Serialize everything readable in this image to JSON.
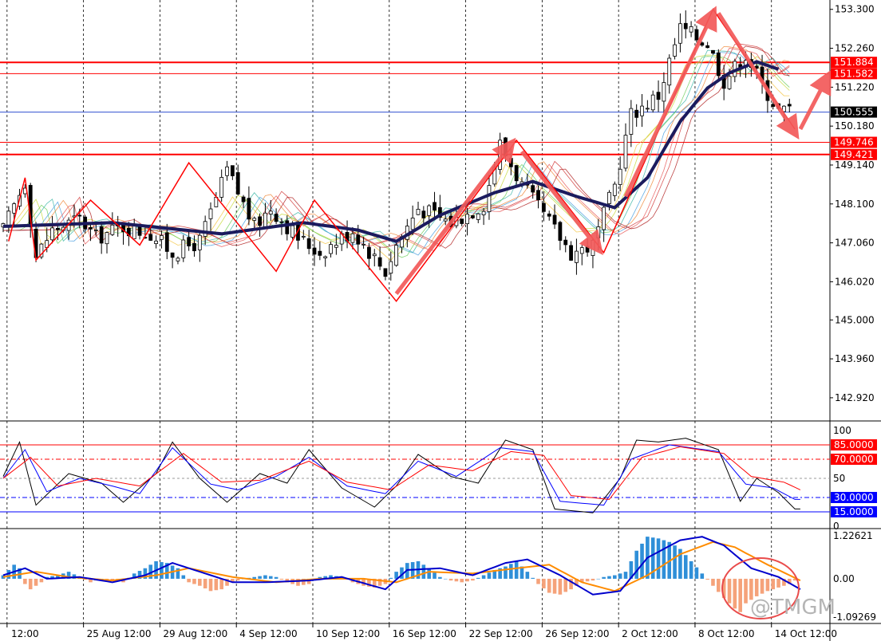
{
  "chart_data": [
    {
      "type": "candlestick",
      "panel": "main",
      "y_ticks": [
        153.3,
        152.26,
        151.22,
        150.18,
        149.14,
        148.1,
        147.06,
        146.02,
        145.0,
        143.96,
        142.92
      ],
      "y_tick_labels": [
        "153.300",
        "152.260",
        "151.220",
        "150.180",
        "149.140",
        "148.100",
        "147.060",
        "146.020",
        "145.000",
        "143.960",
        "142.920"
      ],
      "ylim": [
        142.3,
        153.55
      ],
      "x_labels": [
        "12:00",
        "25 Aug 12:00",
        "29 Aug 12:00",
        "4 Sep 12:00",
        "10 Sep 12:00",
        "16 Sep 12:00",
        "22 Sep 12:00",
        "26 Sep 12:00",
        "2 Oct 12:00",
        "8 Oct 12:00",
        "14 Oct 12:00"
      ],
      "x_label_bars": [
        1,
        15,
        29,
        43,
        57,
        71,
        85,
        99,
        113,
        127,
        141
      ],
      "n_bars": 148,
      "close_path": [
        [
          0,
          147.4
        ],
        [
          4,
          148.7
        ],
        [
          6,
          146.7
        ],
        [
          9,
          147.4
        ],
        [
          14,
          147.7
        ],
        [
          17,
          147.2
        ],
        [
          22,
          147.5
        ],
        [
          27,
          147.3
        ],
        [
          31,
          146.8
        ],
        [
          36,
          147.1
        ],
        [
          41,
          149.0
        ],
        [
          46,
          147.5
        ],
        [
          49,
          148.0
        ],
        [
          54,
          147.2
        ],
        [
          58,
          146.8
        ],
        [
          64,
          147.4
        ],
        [
          70,
          146.3
        ],
        [
          72,
          147.0
        ],
        [
          76,
          148.0
        ],
        [
          82,
          147.6
        ],
        [
          88,
          148.1
        ],
        [
          91,
          149.7
        ],
        [
          95,
          148.6
        ],
        [
          99,
          147.8
        ],
        [
          104,
          146.8
        ],
        [
          108,
          147.0
        ],
        [
          112,
          148.6
        ],
        [
          115,
          150.5
        ],
        [
          120,
          151.0
        ],
        [
          124,
          152.8
        ],
        [
          129,
          152.4
        ],
        [
          132,
          151.4
        ],
        [
          136,
          152.1
        ],
        [
          139,
          151.3
        ],
        [
          142,
          150.6
        ]
      ],
      "ema_thick": [
        [
          0,
          147.5
        ],
        [
          20,
          147.6
        ],
        [
          40,
          147.3
        ],
        [
          55,
          147.6
        ],
        [
          65,
          147.4
        ],
        [
          72,
          147.1
        ],
        [
          80,
          147.8
        ],
        [
          90,
          148.4
        ],
        [
          97,
          148.7
        ],
        [
          105,
          148.3
        ],
        [
          112,
          148.0
        ],
        [
          118,
          148.8
        ],
        [
          124,
          150.3
        ],
        [
          129,
          151.2
        ],
        [
          133,
          151.6
        ],
        [
          138,
          151.9
        ],
        [
          142,
          151.7
        ]
      ],
      "h_lines_red": [
        151.884,
        151.582,
        149.746,
        149.421
      ],
      "h_line_blue": 150.555,
      "price_tags": [
        {
          "value": 151.884,
          "label": "151.884",
          "color": "#ff0000"
        },
        {
          "value": 151.582,
          "label": "151.582",
          "color": "#ff0000"
        },
        {
          "value": 150.555,
          "label": "150.555",
          "color": "#000000"
        },
        {
          "value": 149.746,
          "label": "149.746",
          "color": "#ff0000"
        },
        {
          "value": 149.421,
          "label": "149.421",
          "color": "#ff0000"
        }
      ],
      "zigzag": [
        [
          1,
          147.1
        ],
        [
          4,
          148.8
        ],
        [
          6,
          146.6
        ],
        [
          16,
          148.2
        ],
        [
          25,
          147.0
        ],
        [
          34,
          149.2
        ],
        [
          50,
          146.3
        ],
        [
          57,
          148.2
        ],
        [
          72,
          145.5
        ],
        [
          94,
          149.8
        ],
        [
          110,
          146.8
        ],
        [
          130,
          153.3
        ],
        [
          145,
          150.1
        ]
      ],
      "arrows": [
        {
          "from": [
            72,
            145.7
          ],
          "to": [
            93,
            149.7
          ]
        },
        {
          "from": [
            95,
            149.5
          ],
          "to": [
            109,
            146.9
          ]
        },
        {
          "from": [
            114,
            148.3
          ],
          "to": [
            130,
            153.2
          ]
        },
        {
          "from": [
            131,
            153.2
          ],
          "to": [
            145,
            150.0
          ]
        },
        {
          "from": [
            146,
            150.1
          ],
          "to": [
            151,
            151.5
          ]
        }
      ]
    },
    {
      "type": "line",
      "panel": "stochastic",
      "y_ticks": [
        100,
        85,
        70,
        50,
        30,
        15,
        0
      ],
      "y_tick_labels": [
        "100",
        "85.0000",
        "70.0000",
        "50",
        "30.0000",
        "15.0000",
        "0"
      ],
      "ylim": [
        0,
        100
      ],
      "levels_red": [
        85,
        70
      ],
      "levels_blue": [
        30,
        15
      ],
      "series": [
        {
          "color": "#000000",
          "values": [
            [
              0,
              52
            ],
            [
              3,
              88
            ],
            [
              6,
              22
            ],
            [
              12,
              55
            ],
            [
              18,
              45
            ],
            [
              22,
              25
            ],
            [
              28,
              55
            ],
            [
              31,
              88
            ],
            [
              36,
              50
            ],
            [
              41,
              25
            ],
            [
              47,
              55
            ],
            [
              52,
              45
            ],
            [
              56,
              80
            ],
            [
              62,
              40
            ],
            [
              68,
              20
            ],
            [
              72,
              42
            ],
            [
              76,
              75
            ],
            [
              82,
              52
            ],
            [
              87,
              45
            ],
            [
              92,
              90
            ],
            [
              97,
              80
            ],
            [
              101,
              18
            ],
            [
              108,
              14
            ],
            [
              113,
              50
            ],
            [
              116,
              90
            ],
            [
              120,
              88
            ],
            [
              125,
              92
            ],
            [
              131,
              80
            ],
            [
              135,
              26
            ],
            [
              138,
              50
            ],
            [
              142,
              35
            ],
            [
              145,
              18
            ]
          ]
        },
        {
          "color": "#0000ff",
          "values": [
            [
              0,
              50
            ],
            [
              4,
              80
            ],
            [
              8,
              36
            ],
            [
              14,
              50
            ],
            [
              20,
              42
            ],
            [
              25,
              34
            ],
            [
              31,
              82
            ],
            [
              38,
              44
            ],
            [
              43,
              38
            ],
            [
              50,
              52
            ],
            [
              56,
              72
            ],
            [
              63,
              42
            ],
            [
              70,
              34
            ],
            [
              76,
              68
            ],
            [
              83,
              52
            ],
            [
              91,
              82
            ],
            [
              97,
              78
            ],
            [
              102,
              26
            ],
            [
              110,
              22
            ],
            [
              115,
              70
            ],
            [
              122,
              85
            ],
            [
              131,
              78
            ],
            [
              136,
              44
            ],
            [
              141,
              40
            ],
            [
              145,
              28
            ]
          ]
        },
        {
          "color": "#ff0000",
          "values": [
            [
              0,
              50
            ],
            [
              5,
              72
            ],
            [
              10,
              42
            ],
            [
              17,
              50
            ],
            [
              25,
              42
            ],
            [
              33,
              76
            ],
            [
              40,
              46
            ],
            [
              47,
              48
            ],
            [
              56,
              68
            ],
            [
              63,
              46
            ],
            [
              71,
              38
            ],
            [
              78,
              64
            ],
            [
              86,
              58
            ],
            [
              93,
              78
            ],
            [
              99,
              74
            ],
            [
              104,
              32
            ],
            [
              111,
              28
            ],
            [
              117,
              72
            ],
            [
              124,
              83
            ],
            [
              132,
              76
            ],
            [
              137,
              52
            ],
            [
              143,
              46
            ],
            [
              146,
              38
            ]
          ]
        }
      ]
    },
    {
      "type": "histogram",
      "panel": "macd",
      "y_ticks": [
        1.22621,
        0.0,
        -1.09269
      ],
      "y_tick_labels": [
        "1.22621",
        "0.00",
        "-1.09269"
      ],
      "ylim": [
        -1.09269,
        1.22621
      ],
      "histogram": [
        [
          0,
          0.1
        ],
        [
          1,
          0.25
        ],
        [
          2,
          0.4
        ],
        [
          3,
          0.3
        ],
        [
          4,
          -0.15
        ],
        [
          5,
          -0.3
        ],
        [
          6,
          -0.2
        ],
        [
          7,
          -0.1
        ],
        [
          8,
          0.05
        ],
        [
          10,
          0.1
        ],
        [
          12,
          0.2
        ],
        [
          14,
          0.05
        ],
        [
          16,
          -0.1
        ],
        [
          18,
          0.0
        ],
        [
          20,
          -0.05
        ],
        [
          22,
          -0.1
        ],
        [
          24,
          0.15
        ],
        [
          26,
          0.3
        ],
        [
          28,
          0.5
        ],
        [
          30,
          0.45
        ],
        [
          32,
          0.3
        ],
        [
          34,
          -0.1
        ],
        [
          36,
          -0.2
        ],
        [
          38,
          -0.35
        ],
        [
          40,
          -0.3
        ],
        [
          42,
          -0.1
        ],
        [
          44,
          0.0
        ],
        [
          46,
          0.05
        ],
        [
          48,
          0.1
        ],
        [
          50,
          0.05
        ],
        [
          52,
          -0.1
        ],
        [
          54,
          -0.2
        ],
        [
          56,
          -0.15
        ],
        [
          58,
          0.05
        ],
        [
          60,
          0.1
        ],
        [
          62,
          0.05
        ],
        [
          64,
          -0.1
        ],
        [
          66,
          -0.2
        ],
        [
          68,
          -0.25
        ],
        [
          70,
          -0.15
        ],
        [
          72,
          0.2
        ],
        [
          74,
          0.45
        ],
        [
          76,
          0.5
        ],
        [
          78,
          0.3
        ],
        [
          80,
          0.05
        ],
        [
          82,
          -0.05
        ],
        [
          84,
          -0.1
        ],
        [
          86,
          -0.05
        ],
        [
          88,
          0.1
        ],
        [
          90,
          0.25
        ],
        [
          92,
          0.35
        ],
        [
          94,
          0.5
        ],
        [
          96,
          0.2
        ],
        [
          98,
          -0.15
        ],
        [
          100,
          -0.4
        ],
        [
          102,
          -0.45
        ],
        [
          104,
          -0.3
        ],
        [
          106,
          -0.1
        ],
        [
          108,
          -0.05
        ],
        [
          110,
          0.05
        ],
        [
          112,
          0.1
        ],
        [
          114,
          0.2
        ],
        [
          116,
          0.8
        ],
        [
          118,
          1.2
        ],
        [
          120,
          1.15
        ],
        [
          122,
          1.05
        ],
        [
          124,
          0.85
        ],
        [
          126,
          0.5
        ],
        [
          128,
          0.15
        ],
        [
          130,
          -0.2
        ],
        [
          132,
          -0.55
        ],
        [
          134,
          -0.85
        ],
        [
          135,
          -0.95
        ],
        [
          136,
          -0.7
        ],
        [
          138,
          -0.5
        ],
        [
          140,
          -0.35
        ],
        [
          142,
          -0.25
        ],
        [
          144,
          -0.15
        ],
        [
          145,
          -0.05
        ]
      ],
      "macd_line": [
        [
          0,
          0.1
        ],
        [
          4,
          0.3
        ],
        [
          8,
          0.0
        ],
        [
          14,
          0.05
        ],
        [
          20,
          -0.1
        ],
        [
          26,
          0.1
        ],
        [
          31,
          0.45
        ],
        [
          36,
          0.2
        ],
        [
          42,
          -0.1
        ],
        [
          48,
          -0.1
        ],
        [
          56,
          -0.05
        ],
        [
          62,
          0.05
        ],
        [
          70,
          -0.3
        ],
        [
          74,
          0.25
        ],
        [
          80,
          0.3
        ],
        [
          86,
          0.1
        ],
        [
          92,
          0.45
        ],
        [
          96,
          0.55
        ],
        [
          102,
          0.1
        ],
        [
          108,
          -0.45
        ],
        [
          113,
          -0.35
        ],
        [
          118,
          0.6
        ],
        [
          124,
          1.1
        ],
        [
          128,
          1.2
        ],
        [
          132,
          0.95
        ],
        [
          137,
          0.3
        ],
        [
          142,
          0.05
        ],
        [
          146,
          -0.3
        ]
      ],
      "signal_line": [
        [
          0,
          0.05
        ],
        [
          6,
          0.2
        ],
        [
          12,
          0.05
        ],
        [
          20,
          -0.05
        ],
        [
          28,
          0.1
        ],
        [
          34,
          0.3
        ],
        [
          42,
          0.05
        ],
        [
          50,
          -0.1
        ],
        [
          58,
          0.0
        ],
        [
          66,
          0.0
        ],
        [
          72,
          -0.1
        ],
        [
          78,
          0.2
        ],
        [
          86,
          0.15
        ],
        [
          94,
          0.3
        ],
        [
          100,
          0.4
        ],
        [
          106,
          -0.1
        ],
        [
          112,
          -0.35
        ],
        [
          118,
          0.1
        ],
        [
          124,
          0.7
        ],
        [
          130,
          1.05
        ],
        [
          134,
          0.9
        ],
        [
          140,
          0.4
        ],
        [
          146,
          -0.05
        ]
      ]
    }
  ],
  "watermark": "@TMGM",
  "colors": {
    "up_candle": "#008000",
    "down_candle": "#ff0000",
    "level_red": "#ff0000",
    "level_blue": "#0000ff",
    "ema_thick": "#1b1b5e",
    "hist_pos": "#2f8fd8",
    "hist_neg": "#f5a27a",
    "macd_line": "#0000cc",
    "signal_line": "#ff8c00",
    "highlight_circle": "#e94b4b"
  }
}
